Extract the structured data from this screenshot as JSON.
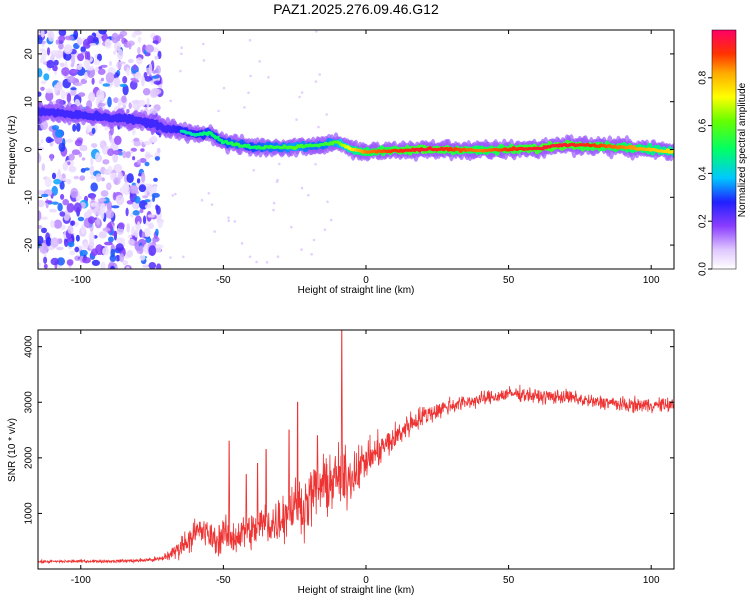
{
  "chart_data": [
    {
      "type": "heatmap",
      "title": "PAZ1.2025.276.09.46.G12",
      "xlabel": "Height of straight line (km)",
      "ylabel": "Frequency (Hz)",
      "xlim": [
        -115,
        108
      ],
      "ylim": [
        -25,
        25
      ],
      "xticks": [
        -100,
        -50,
        0,
        50,
        100
      ],
      "xtick_labels": [
        "-100",
        "-50",
        "0",
        "50",
        "100"
      ],
      "yticks": [
        -20,
        -10,
        0,
        10,
        20
      ],
      "ytick_labels": [
        "-20",
        "-10",
        "0",
        "10",
        "20"
      ],
      "ridge": {
        "description_points_x_km": [
          -115,
          -105,
          -95,
          -85,
          -75,
          -70,
          -65,
          -60,
          -55,
          -50,
          -45,
          -40,
          -35,
          -30,
          -25,
          -20,
          -15,
          -10,
          -5,
          0,
          10,
          20,
          30,
          40,
          50,
          60,
          70,
          80,
          90,
          100,
          108
        ],
        "frequency_hz": [
          8,
          7.5,
          7,
          6.5,
          5.5,
          4.5,
          4,
          3,
          3.5,
          1.5,
          1,
          0.5,
          0.5,
          0.5,
          0.5,
          0.8,
          1,
          1.5,
          0,
          -0.5,
          -0.3,
          0,
          0,
          -0.2,
          0,
          0.2,
          1,
          0.8,
          0.5,
          0,
          -0.5
        ],
        "amplitude": [
          0.25,
          0.3,
          0.3,
          0.25,
          0.3,
          0.4,
          0.45,
          0.45,
          0.5,
          0.5,
          0.55,
          0.5,
          0.55,
          0.55,
          0.6,
          0.55,
          0.55,
          0.6,
          0.75,
          0.85,
          0.9,
          0.95,
          0.9,
          0.85,
          0.9,
          0.95,
          0.95,
          0.9,
          0.85,
          0.8,
          0.75
        ]
      },
      "noise_region_x_km": [
        -115,
        -72
      ],
      "colorbar": {
        "label": "Normalized spectral amplitude",
        "range": [
          0,
          1
        ],
        "ticks": [
          0.0,
          0.2,
          0.4,
          0.6,
          0.8
        ],
        "tick_labels": [
          "0.0",
          "0.2",
          "0.4",
          "0.6",
          "0.8"
        ]
      }
    },
    {
      "type": "line",
      "title": "",
      "xlabel": "Height of straight line (km)",
      "ylabel": "SNR (10 * v/v)",
      "xlim": [
        -115,
        108
      ],
      "ylim": [
        0,
        4300
      ],
      "xticks": [
        -100,
        -50,
        0,
        50,
        100
      ],
      "xtick_labels": [
        "-100",
        "-50",
        "0",
        "50",
        "100"
      ],
      "yticks": [
        1000,
        2000,
        3000,
        4000
      ],
      "ytick_labels": [
        "1000",
        "2000",
        "3000",
        "4000"
      ],
      "series": [
        {
          "name": "SNR",
          "color": "#ee3333",
          "x": [
            -115,
            -100,
            -90,
            -80,
            -72,
            -68,
            -65,
            -62,
            -58,
            -55,
            -52,
            -50,
            -48,
            -45,
            -42,
            -40,
            -38,
            -35,
            -32,
            -30,
            -28,
            -25,
            -22,
            -20,
            -18,
            -15,
            -12,
            -9,
            -8,
            -6,
            -4,
            -2,
            0,
            5,
            10,
            15,
            20,
            25,
            30,
            35,
            40,
            45,
            50,
            55,
            60,
            65,
            70,
            75,
            80,
            85,
            90,
            95,
            100,
            105,
            108
          ],
          "mean": [
            130,
            140,
            140,
            150,
            180,
            280,
            400,
            550,
            700,
            600,
            500,
            650,
            550,
            600,
            700,
            650,
            750,
            850,
            800,
            950,
            1000,
            1150,
            1100,
            1250,
            1400,
            1500,
            1550,
            1700,
            1600,
            1650,
            1750,
            1850,
            1950,
            2150,
            2350,
            2600,
            2750,
            2850,
            2950,
            3000,
            3050,
            3100,
            3150,
            3150,
            3100,
            3100,
            3100,
            3050,
            3000,
            3000,
            2950,
            2950,
            2950,
            2950,
            2950
          ],
          "spread": [
            40,
            40,
            40,
            50,
            80,
            200,
            300,
            350,
            450,
            400,
            400,
            500,
            450,
            450,
            550,
            500,
            600,
            650,
            650,
            700,
            700,
            750,
            750,
            750,
            800,
            800,
            800,
            850,
            850,
            800,
            700,
            600,
            500,
            450,
            400,
            350,
            300,
            250,
            250,
            200,
            200,
            200,
            200,
            200,
            200,
            200,
            200,
            200,
            200,
            200,
            200,
            200,
            200,
            200,
            200
          ],
          "spikes": [
            {
              "x": -48,
              "y": 2300
            },
            {
              "x": -42,
              "y": 1700
            },
            {
              "x": -38,
              "y": 1900
            },
            {
              "x": -35,
              "y": 2150
            },
            {
              "x": -27,
              "y": 2500
            },
            {
              "x": -24,
              "y": 3000
            },
            {
              "x": -8.5,
              "y": 4300
            },
            {
              "x": -17,
              "y": 2400
            }
          ]
        }
      ]
    }
  ]
}
